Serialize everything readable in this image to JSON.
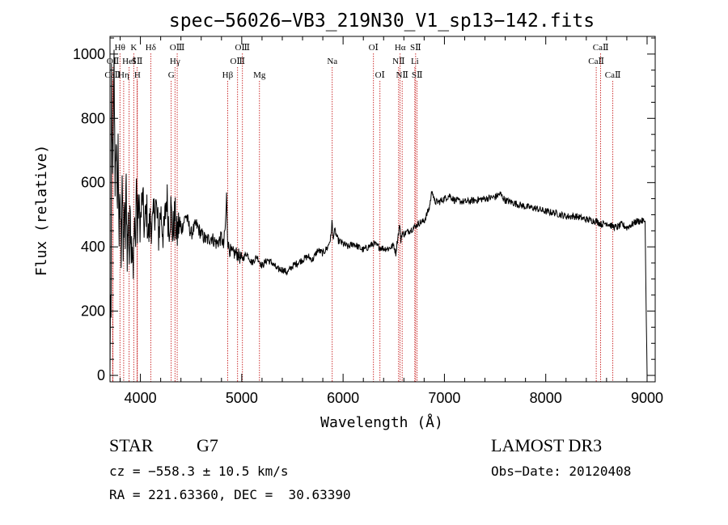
{
  "chart_data": {
    "type": "line",
    "title": "spec−56026−VB3_219N30_V1_sp13−142.fits",
    "xlabel": "Wavelength (Å)",
    "ylabel": "Flux (relative)",
    "xlim": [
      3700,
      9080
    ],
    "ylim": [
      -20,
      1055
    ],
    "xticks": [
      4000,
      5000,
      6000,
      7000,
      8000,
      9000
    ],
    "yticks": [
      0,
      200,
      400,
      600,
      800,
      1000
    ],
    "grid": false,
    "series": [
      {
        "name": "flux",
        "x": [
          3700,
          3705,
          3710,
          3715,
          3720,
          3730,
          3740,
          3750,
          3760,
          3770,
          3780,
          3790,
          3800,
          3810,
          3820,
          3830,
          3840,
          3850,
          3860,
          3870,
          3880,
          3890,
          3900,
          3910,
          3920,
          3930,
          3940,
          3950,
          3960,
          3970,
          3980,
          4000,
          4020,
          4040,
          4060,
          4080,
          4100,
          4120,
          4150,
          4180,
          4200,
          4230,
          4260,
          4280,
          4300,
          4320,
          4340,
          4360,
          4380,
          4400,
          4450,
          4500,
          4550,
          4600,
          4650,
          4700,
          4750,
          4780,
          4800,
          4820,
          4840,
          4850,
          4860,
          4870,
          4900,
          4950,
          5000,
          5050,
          5100,
          5150,
          5200,
          5250,
          5300,
          5350,
          5400,
          5450,
          5500,
          5550,
          5600,
          5650,
          5700,
          5750,
          5800,
          5850,
          5870,
          5880,
          5890,
          5900,
          5920,
          5950,
          6000,
          6050,
          6100,
          6150,
          6200,
          6250,
          6300,
          6350,
          6400,
          6450,
          6500,
          6520,
          6540,
          6560,
          6570,
          6580,
          6600,
          6650,
          6700,
          6750,
          6800,
          6850,
          6880,
          6900,
          6950,
          7000,
          7050,
          7100,
          7200,
          7300,
          7400,
          7500,
          7550,
          7600,
          7650,
          7700,
          7800,
          7900,
          8000,
          8100,
          8200,
          8300,
          8400,
          8500,
          8550,
          8600,
          8650,
          8700,
          8750,
          8800,
          8850,
          8900,
          8950,
          8980,
          8990,
          9000
        ],
        "y": [
          0,
          250,
          180,
          900,
          720,
          650,
          980,
          600,
          760,
          500,
          720,
          420,
          560,
          380,
          640,
          360,
          520,
          420,
          600,
          380,
          480,
          360,
          520,
          400,
          430,
          340,
          470,
          390,
          620,
          440,
          530,
          470,
          560,
          450,
          520,
          430,
          490,
          460,
          540,
          440,
          510,
          430,
          560,
          460,
          520,
          440,
          500,
          430,
          470,
          450,
          500,
          440,
          470,
          440,
          420,
          430,
          410,
          420,
          430,
          400,
          470,
          560,
          430,
          400,
          380,
          380,
          360,
          380,
          350,
          370,
          340,
          360,
          350,
          330,
          330,
          320,
          340,
          350,
          360,
          370,
          360,
          390,
          380,
          400,
          420,
          430,
          480,
          430,
          450,
          420,
          410,
          400,
          410,
          400,
          390,
          400,
          410,
          400,
          395,
          395,
          405,
          380,
          430,
          470,
          420,
          440,
          440,
          450,
          460,
          475,
          480,
          520,
          580,
          540,
          540,
          550,
          560,
          545,
          540,
          545,
          550,
          555,
          565,
          545,
          540,
          535,
          525,
          520,
          510,
          505,
          495,
          495,
          485,
          480,
          470,
          475,
          465,
          460,
          470,
          460,
          470,
          480,
          480,
          480,
          230,
          0
        ]
      }
    ],
    "lines": [
      {
        "label": "CaⅡ",
        "x": 3726,
        "row": 2
      },
      {
        "label": "OⅡ",
        "x": 3729,
        "row": 1
      },
      {
        "label": "Hθ",
        "x": 3798,
        "row": 0
      },
      {
        "label": "Hη",
        "x": 3835,
        "row": 2
      },
      {
        "label": "HeⅠ",
        "x": 3889,
        "row": 1
      },
      {
        "label": "K",
        "x": 3934,
        "row": 0
      },
      {
        "label": "SⅡ",
        "x": 3968,
        "row": 1
      },
      {
        "label": "H",
        "x": 3970,
        "row": 2
      },
      {
        "label": "Hδ",
        "x": 4102,
        "row": 0
      },
      {
        "label": "G",
        "x": 4304,
        "row": 2
      },
      {
        "label": "Hγ",
        "x": 4341,
        "row": 1
      },
      {
        "label": "OⅢ",
        "x": 4363,
        "row": 0
      },
      {
        "label": "Hβ",
        "x": 4861,
        "row": 2
      },
      {
        "label": "OⅢ",
        "x": 4959,
        "row": 1
      },
      {
        "label": "OⅢ",
        "x": 5007,
        "row": 0
      },
      {
        "label": "Mg",
        "x": 5175,
        "row": 2
      },
      {
        "label": "Na",
        "x": 5893,
        "row": 1
      },
      {
        "label": "OⅠ",
        "x": 6300,
        "row": 0
      },
      {
        "label": "OⅠ",
        "x": 6364,
        "row": 2
      },
      {
        "label": "NⅡ",
        "x": 6548,
        "row": 1
      },
      {
        "label": "Hα",
        "x": 6563,
        "row": 0
      },
      {
        "label": "NⅡ",
        "x": 6583,
        "row": 2
      },
      {
        "label": "Li",
        "x": 6708,
        "row": 1
      },
      {
        "label": "SⅡ",
        "x": 6716,
        "row": 0
      },
      {
        "label": "SⅡ",
        "x": 6731,
        "row": 2
      },
      {
        "label": "CaⅡ",
        "x": 8498,
        "row": 1
      },
      {
        "label": "CaⅡ",
        "x": 8542,
        "row": 0
      },
      {
        "label": "CaⅡ",
        "x": 8662,
        "row": 2
      }
    ],
    "line_color": "#c00000"
  },
  "info": {
    "class_label": "STAR",
    "subclass": "G7",
    "survey": "LAMOST DR3",
    "cz": "cz = −558.3 ± 10.5 km/s",
    "obs_date": "Obs−Date: 20120408",
    "coords": "RA = 221.63360, DEC =  30.63390"
  }
}
